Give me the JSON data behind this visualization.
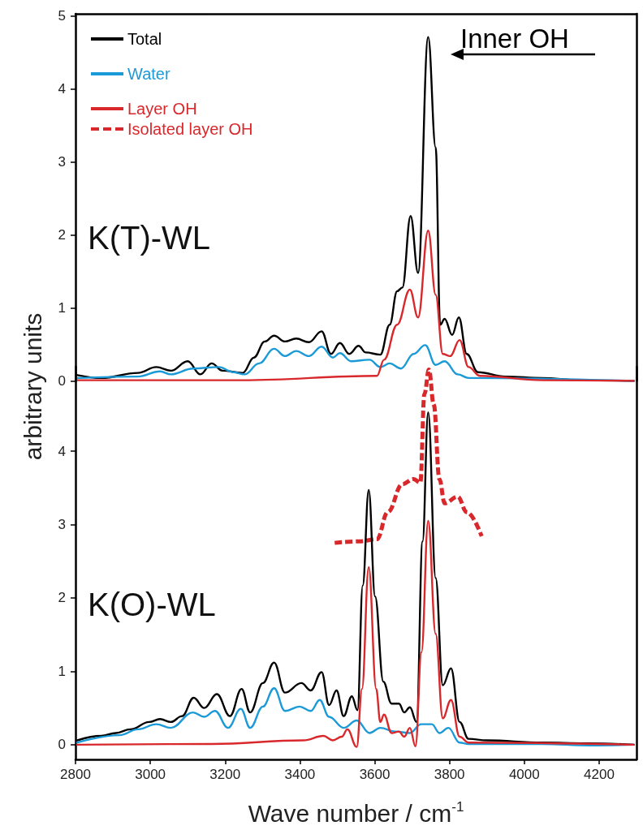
{
  "chart_data": [
    {
      "type": "line",
      "title": "K(T)-WL",
      "ylabel": "arbitrary units",
      "xlim": [
        2800,
        4300
      ],
      "ylim": [
        0,
        5.03
      ],
      "yticks": [
        0,
        1,
        2,
        3,
        4,
        5
      ],
      "tick_labels": "y",
      "legend": "top left",
      "marker": "none",
      "line_style": "solid",
      "annotations": [
        "Inner OH"
      ],
      "series": [
        {
          "name": "Total",
          "color": "#000000",
          "x": [
            2805,
            2869,
            2967,
            3016,
            3055,
            3100,
            3134,
            3164,
            3193,
            3247,
            3277,
            3306,
            3331,
            3360,
            3390,
            3424,
            3458,
            3483,
            3507,
            3532,
            3557,
            3576,
            3615,
            3640,
            3660,
            3674,
            3696,
            3716,
            3743,
            3763,
            3775,
            3787,
            3807,
            3825,
            3846,
            3876,
            3950,
            4048,
            4146,
            4293
          ],
          "values": [
            0.08,
            0.04,
            0.11,
            0.19,
            0.14,
            0.27,
            0.09,
            0.24,
            0.14,
            0.11,
            0.32,
            0.54,
            0.62,
            0.54,
            0.58,
            0.53,
            0.68,
            0.37,
            0.52,
            0.37,
            0.48,
            0.39,
            0.36,
            0.77,
            1.23,
            1.28,
            2.26,
            1.48,
            4.71,
            3.2,
            0.77,
            0.85,
            0.63,
            0.87,
            0.37,
            0.12,
            0.06,
            0.04,
            0.01,
            0
          ]
        },
        {
          "name": "Water",
          "color": "#1b9ad8",
          "x": [
            2805,
            2967,
            3026,
            3055,
            3114,
            3183,
            3222,
            3252,
            3291,
            3331,
            3360,
            3390,
            3424,
            3458,
            3488,
            3507,
            3537,
            3586,
            3615,
            3640,
            3670,
            3704,
            3735,
            3763,
            3787,
            3822,
            3851,
            4293
          ],
          "values": [
            0.04,
            0.06,
            0.13,
            0.09,
            0.17,
            0.19,
            0.12,
            0.09,
            0.24,
            0.44,
            0.34,
            0.41,
            0.34,
            0.47,
            0.32,
            0.38,
            0.27,
            0.29,
            0.19,
            0.24,
            0.17,
            0.37,
            0.49,
            0.22,
            0.27,
            0.09,
            0.04,
            0
          ]
        },
        {
          "name": "Layer OH",
          "color": "#d8282c",
          "x": [
            2805,
            3247,
            3606,
            3625,
            3660,
            3694,
            3716,
            3743,
            3763,
            3782,
            3802,
            3827,
            3851,
            3881,
            4048,
            4293
          ],
          "values": [
            0.01,
            0.01,
            0.07,
            0.29,
            0.77,
            1.25,
            0.87,
            2.06,
            1.18,
            0.37,
            0.34,
            0.56,
            0.19,
            0.07,
            0.01,
            0
          ]
        }
      ]
    },
    {
      "type": "line",
      "title": "K(O)-WL",
      "xlabel": "Wave number / cm$^{-1}$",
      "xlim": [
        2800,
        4300
      ],
      "xticks": [
        2800,
        3000,
        3200,
        3400,
        3600,
        3800,
        4000,
        4200
      ],
      "ylim": [
        -0.2,
        5.15
      ],
      "yticks": [
        0,
        1,
        2,
        3,
        4
      ],
      "legend": "top left",
      "marker": "none",
      "line_style": "solid",
      "series": [
        {
          "color": "#000000",
          "x": [
            2805,
            2869,
            2908,
            2947,
            2997,
            3026,
            3055,
            3085,
            3116,
            3144,
            3178,
            3213,
            3244,
            3267,
            3301,
            3331,
            3360,
            3404,
            3429,
            3458,
            3478,
            3498,
            3517,
            3539,
            3554,
            3568,
            3584,
            3601,
            3623,
            3645,
            3665,
            3679,
            3694,
            3712,
            3728,
            3743,
            3763,
            3782,
            3804,
            3827,
            3851,
            3900,
            4048,
            4166,
            4293
          ],
          "values": [
            0.06,
            0.12,
            0.16,
            0.21,
            0.31,
            0.35,
            0.31,
            0.39,
            0.64,
            0.5,
            0.69,
            0.39,
            0.76,
            0.44,
            0.84,
            1.12,
            0.71,
            0.84,
            0.74,
            0.99,
            0.54,
            0.74,
            0.39,
            0.66,
            0.47,
            2.17,
            3.47,
            2.02,
            0.86,
            0.56,
            0.56,
            0.44,
            0.51,
            0.31,
            2.77,
            4.53,
            2.27,
            0.81,
            1.04,
            0.31,
            0.08,
            0.06,
            0.03,
            0.02,
            0
          ]
        },
        {
          "color": "#1b9ad8",
          "x": [
            2805,
            2918,
            2967,
            3016,
            3055,
            3114,
            3144,
            3173,
            3208,
            3242,
            3267,
            3301,
            3331,
            3360,
            3399,
            3429,
            3453,
            3478,
            3517,
            3552,
            3586,
            3615,
            3655,
            3694,
            3724,
            3753,
            3773,
            3797,
            3827,
            3851,
            4048,
            4175,
            4293
          ],
          "values": [
            0.03,
            0.13,
            0.21,
            0.28,
            0.23,
            0.44,
            0.38,
            0.46,
            0.23,
            0.49,
            0.23,
            0.52,
            0.77,
            0.46,
            0.52,
            0.46,
            0.61,
            0.38,
            0.23,
            0.33,
            0.16,
            0.23,
            0.18,
            0.16,
            0.28,
            0.28,
            0.16,
            0.23,
            0.03,
            0.01,
            0.01,
            -0.01,
            0
          ]
        },
        {
          "color": "#d8282c",
          "x": [
            2805,
            3164,
            3409,
            3463,
            3488,
            3512,
            3527,
            3552,
            3566,
            3584,
            3604,
            3615,
            3625,
            3645,
            3665,
            3679,
            3694,
            3709,
            3725,
            3743,
            3763,
            3782,
            3804,
            3827,
            3851,
            4293
          ],
          "values": [
            0,
            0.01,
            0.06,
            0.12,
            0.06,
            0.11,
            0.21,
            -0.03,
            0.76,
            2.42,
            0.76,
            0.31,
            0.41,
            0.16,
            0.18,
            0.11,
            0.23,
            -0.02,
            1.26,
            3.05,
            1.51,
            0.36,
            0.61,
            0.11,
            0.03,
            0
          ]
        },
        {
          "name": "Isolated layer OH",
          "color": "#d8282c",
          "line_style": "dashed",
          "x": [
            3493,
            3557,
            3606,
            3635,
            3674,
            3704,
            3722,
            3733,
            3745,
            3758,
            3773,
            3787,
            3822,
            3846,
            3886
          ],
          "values": [
            2.75,
            2.77,
            2.8,
            3.17,
            3.55,
            3.62,
            3.57,
            4.78,
            5.11,
            4.63,
            3.62,
            3.29,
            3.38,
            3.17,
            2.84
          ]
        }
      ]
    }
  ]
}
